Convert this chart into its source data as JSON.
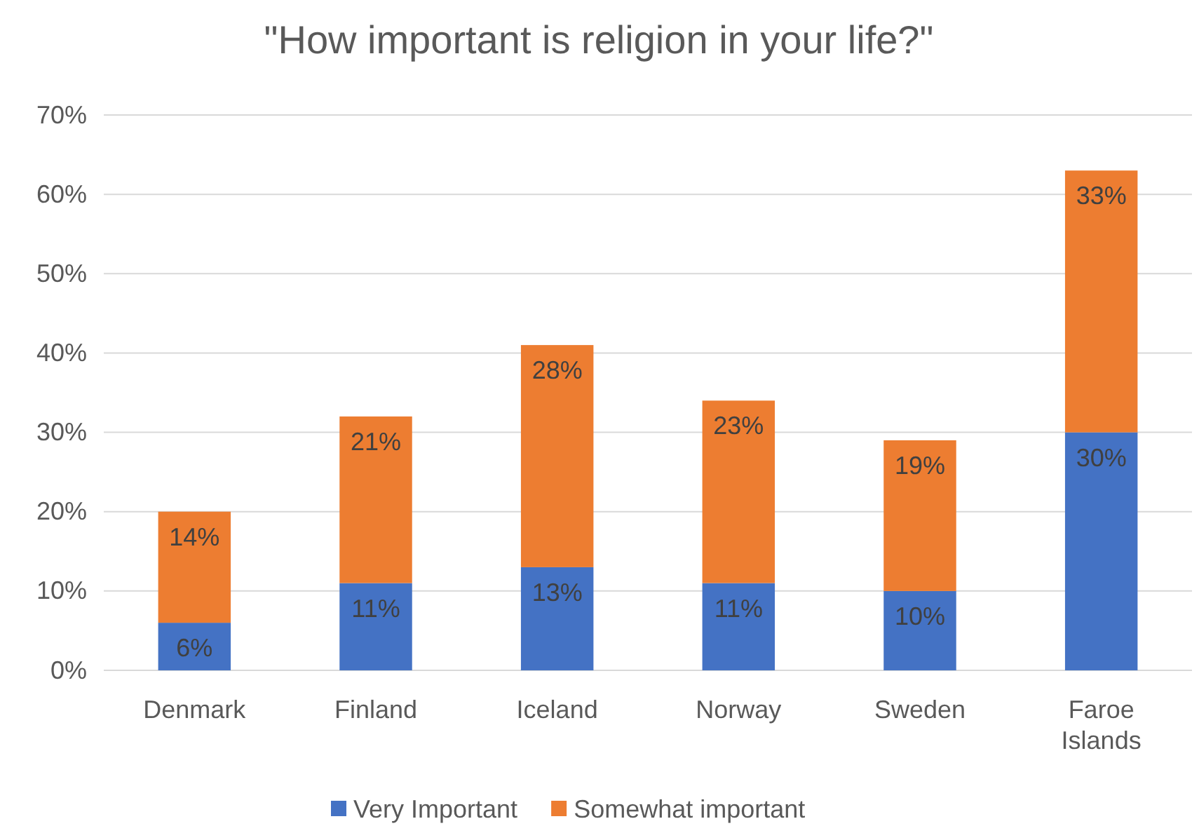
{
  "chart_data": {
    "type": "bar",
    "title": "\"How important is religion in your life?\"",
    "stacked": true,
    "categories": [
      "Denmark",
      "Finland",
      "Iceland",
      "Norway",
      "Sweden",
      "Faroe Islands"
    ],
    "series": [
      {
        "name": "Very Important",
        "color": "#4472c4",
        "values": [
          6,
          11,
          13,
          11,
          10,
          30
        ],
        "value_labels": [
          "6%",
          "11%",
          "13%",
          "11%",
          "10%",
          "30%"
        ]
      },
      {
        "name": "Somewhat important",
        "color": "#ed7d31",
        "values": [
          14,
          21,
          28,
          23,
          19,
          33
        ],
        "value_labels": [
          "14%",
          "21%",
          "28%",
          "23%",
          "19%",
          "33%"
        ]
      }
    ],
    "ylim": [
      0,
      70
    ],
    "yticks": [
      {
        "value": 0,
        "label": "0%"
      },
      {
        "value": 10,
        "label": "10%"
      },
      {
        "value": 20,
        "label": "20%"
      },
      {
        "value": 30,
        "label": "30%"
      },
      {
        "value": 40,
        "label": "40%"
      },
      {
        "value": 50,
        "label": "50%"
      },
      {
        "value": 60,
        "label": "60%"
      },
      {
        "value": 70,
        "label": "70%"
      }
    ],
    "grid": "y",
    "legend": "bottom"
  }
}
